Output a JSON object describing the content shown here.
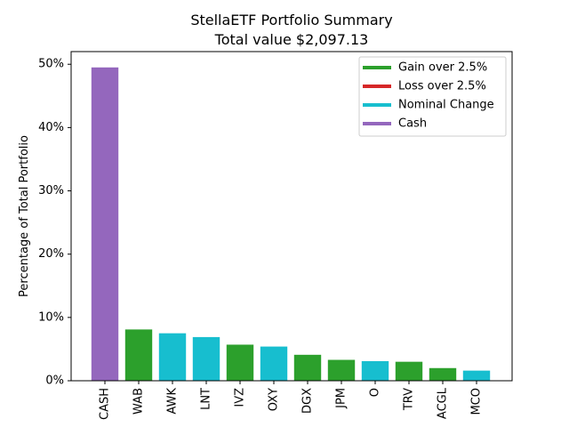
{
  "chart_data": {
    "type": "bar",
    "title": "StellaETF Portfolio Summary",
    "subtitle": "Total value $2,097.13",
    "xlabel": "",
    "ylabel": "Percentage of Total Portfolio",
    "ylim": [
      0,
      52
    ],
    "yticks": [
      0,
      10,
      20,
      30,
      40,
      50
    ],
    "ytick_labels": [
      "0%",
      "10%",
      "20%",
      "30%",
      "40%",
      "50%"
    ],
    "grid": false,
    "legend_position": "top-right",
    "categories": [
      "CASH",
      "WAB",
      "AWK",
      "LNT",
      "IVZ",
      "OXY",
      "DGX",
      "JPM",
      "O",
      "TRV",
      "ACGL",
      "MCO"
    ],
    "values": [
      49.5,
      8.1,
      7.5,
      6.9,
      5.7,
      5.4,
      4.1,
      3.3,
      3.1,
      3.0,
      2.0,
      1.6
    ],
    "groups": [
      "cash",
      "gain",
      "nominal",
      "nominal",
      "gain",
      "nominal",
      "gain",
      "gain",
      "nominal",
      "gain",
      "gain",
      "nominal"
    ],
    "legend": [
      {
        "key": "gain",
        "label": "Gain over 2.5%",
        "color": "#2ca02c"
      },
      {
        "key": "loss",
        "label": "Loss over 2.5%",
        "color": "#d62728"
      },
      {
        "key": "nominal",
        "label": "Nominal Change",
        "color": "#17becf"
      },
      {
        "key": "cash",
        "label": "Cash",
        "color": "#9467bd"
      }
    ]
  }
}
